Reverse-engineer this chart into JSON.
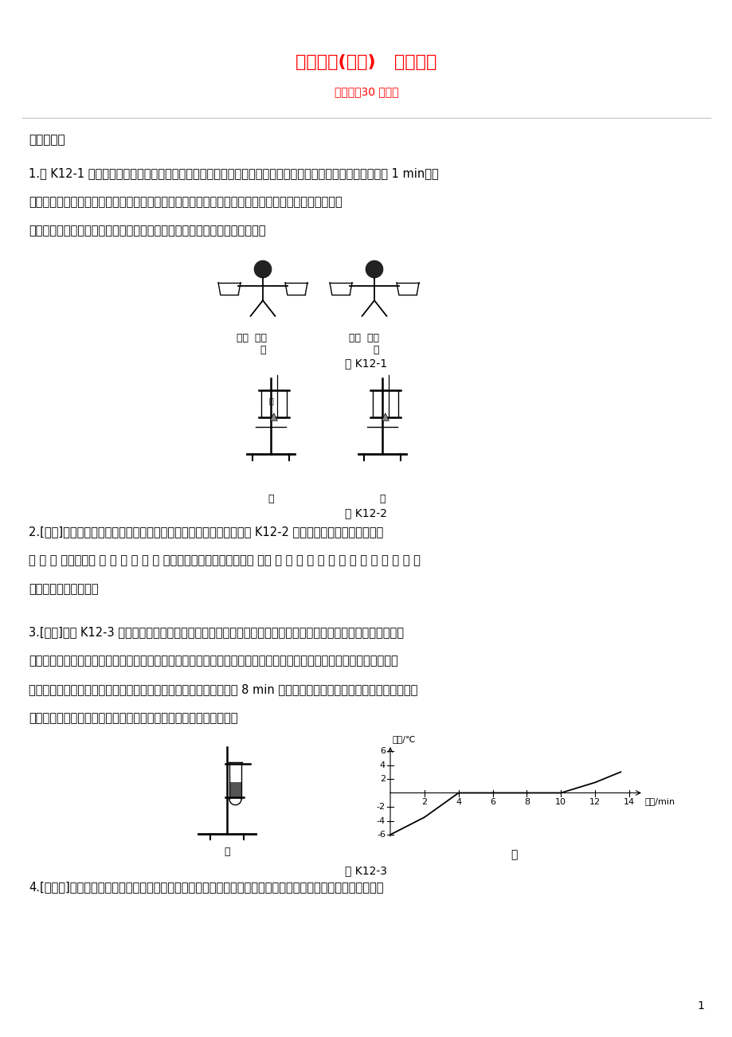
{
  "title": "课时训练(十二)   物态变化",
  "subtitle": "（限时：30 分钟）",
  "title_color": "#FF0000",
  "subtitle_color": "#FF0000",
  "bg_color": "#FFFFFF",
  "text_color": "#000000",
  "section1": "一、填空题",
  "q1_line1": "1.图 K12-1 是林红同学在物理课上做的实验：她先用布将眼睛蒙上，再将左、右手分别放在热水和冷水中浸泡 1 min，然",
  "q1_line2": "后一起放入温水中，结果右手感到该温水较热，左手感到该温水较凉。这个实验的目的是使同学们认识",
  "q1_line3": "到＿＿＿＿＿＿＿＿＿＿＿＿＿，实验中用到的科学研究方法是＿＿＿＿法。",
  "fig_k12_1_label": "图 K12-1",
  "fig_k12_2_label": "图 K12-2",
  "q2_line1": "2.[烟台]小明在做探究海波燕化时温度的变化规律实验时，设计了如图 K12-2 所示的甲、乙两种方案，实验",
  "q2_line2": "应 选 用 ＿＿＿＿方 案 ， 其 优 点 是 ＿＿＿＿＿＿＿＿＿＿＿＿＿ ，实 验 过 程 中 温 度 计 示 数 的 变 化 情 况",
  "q2_line3": "是＿＿＿＿＿＿＿＿。",
  "q3_line1": "3.[淮安]如图 K12-3 甲所示，探究冰的燕化特点时，将装有碎冰的试管直接放置在空气中，不用酒精灯加热，这样",
  "q3_line2": "做不但使试管均匀受热，而且冰的温度升高较＿＿＿＿（选填「快」或「慢」），便于记录各个时刻的温度。图乙是根据",
  "q3_line3": "实验数据绘制的冰燕化时温度随时间变化的图像。由图像可知，在第 8 min 末，试管里的冰处于＿＿＿＿＿＿（选填「固",
  "q3_line4": "态」「液态」或「固液共存态」），冰在燕化过程中温度＿＿＿＿。",
  "fig_k12_3_label": "图 K12-3",
  "q4_line1": "4.[攀枝花]将一瓶饮料在冰笱中冷藏一段时间后，取出放一会儿，表面会变湿，用毛巾擦干后过一会儿又会变湿，",
  "page_num": "1"
}
